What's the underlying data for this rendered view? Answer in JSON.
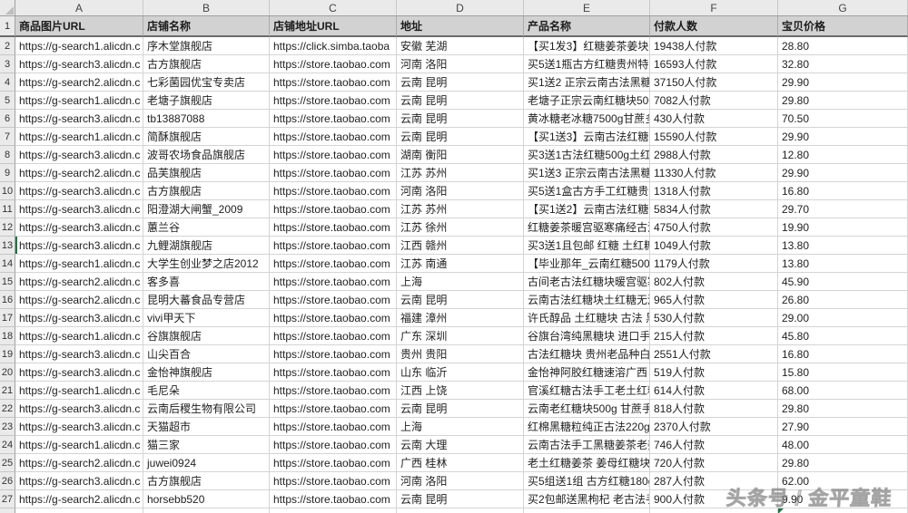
{
  "sheet": {
    "header_row_number": "1",
    "columns": [
      {
        "letter": "A",
        "header": "商品图片URL"
      },
      {
        "letter": "B",
        "header": "店铺名称"
      },
      {
        "letter": "C",
        "header": "店铺地址URL"
      },
      {
        "letter": "D",
        "header": "地址"
      },
      {
        "letter": "E",
        "header": "产品名称"
      },
      {
        "letter": "F",
        "header": "付款人数"
      },
      {
        "letter": "G",
        "header": "宝贝价格"
      }
    ],
    "rows": [
      {
        "n": "2",
        "cells": {
          "A": "https://g-search1.alicdn.c",
          "B": "序木堂旗舰店",
          "C": "https://click.simba.taoba",
          "D": "安徽 芜湖",
          "E": "【买1发3】红糖姜茶姜块红",
          "F": "19438人付款",
          "G": "28.80"
        }
      },
      {
        "n": "3",
        "cells": {
          "A": "https://g-search3.alicdn.c",
          "B": "古方旗舰店",
          "C": "https://store.taobao.com",
          "D": "河南 洛阳",
          "E": "买5送1瓶古方红糖贵州特产",
          "F": "16593人付款",
          "G": "32.80"
        }
      },
      {
        "n": "4",
        "cells": {
          "A": "https://g-search2.alicdn.c",
          "B": "七彩菌园优宝专卖店",
          "C": "https://store.taobao.com",
          "D": "云南 昆明",
          "E": "买1送2 正宗云南古法黑糖",
          "F": "37150人付款",
          "G": "29.90"
        }
      },
      {
        "n": "5",
        "cells": {
          "A": "https://g-search1.alicdn.c",
          "B": "老塘子旗舰店",
          "C": "https://store.taobao.com",
          "D": "云南 昆明",
          "E": "老塘子正宗云南红糖块500",
          "F": "7082人付款",
          "G": "29.80"
        }
      },
      {
        "n": "6",
        "cells": {
          "A": "https://g-search3.alicdn.c",
          "B": "tb13887088",
          "C": "https://store.taobao.com",
          "D": "云南 昆明",
          "E": "黄冰糖老冰糖7500g甘蔗多",
          "F": "430人付款",
          "G": "70.50"
        }
      },
      {
        "n": "7",
        "cells": {
          "A": "https://g-search1.alicdn.c",
          "B": "简酥旗舰店",
          "C": "https://store.taobao.com",
          "D": "云南 昆明",
          "E": "【买1送3】云南古法红糖块",
          "F": "15590人付款",
          "G": "29.90"
        }
      },
      {
        "n": "8",
        "cells": {
          "A": "https://g-search3.alicdn.c",
          "B": "波哥农场食品旗舰店",
          "C": "https://store.taobao.com",
          "D": "湖南 衡阳",
          "E": "买3送1古法红糖500g土红糖",
          "F": "2988人付款",
          "G": "12.80"
        }
      },
      {
        "n": "9",
        "cells": {
          "A": "https://g-search2.alicdn.c",
          "B": "品芙旗舰店",
          "C": "https://store.taobao.com",
          "D": "江苏 苏州",
          "E": "买1送3 正宗云南古法黑糖",
          "F": "11330人付款",
          "G": "29.90"
        }
      },
      {
        "n": "10",
        "cells": {
          "A": "https://g-search3.alicdn.c",
          "B": "古方旗舰店",
          "C": "https://store.taobao.com",
          "D": "河南 洛阳",
          "E": "买5送1盒古方手工红糖贵州",
          "F": "1318人付款",
          "G": "16.80"
        }
      },
      {
        "n": "11",
        "cells": {
          "A": "https://g-search3.alicdn.c",
          "B": "阳澄湖大闸蟹_2009",
          "C": "https://store.taobao.com",
          "D": "江苏 苏州",
          "E": "【买1送2】云南古法红糖姜",
          "F": "5834人付款",
          "G": "29.70"
        }
      },
      {
        "n": "12",
        "cells": {
          "A": "https://g-search3.alicdn.c",
          "B": "蕙兰谷",
          "C": "https://store.taobao.com",
          "D": "江苏 徐州",
          "E": "红糖姜茶暖宫驱寒痛经古法",
          "F": "4750人付款",
          "G": "19.90"
        }
      },
      {
        "n": "13",
        "cells": {
          "A": "https://g-search3.alicdn.c",
          "B": "九鲤湖旗舰店",
          "C": "https://store.taobao.com",
          "D": "江西 赣州",
          "E": "买3送1且包邮 红糖 土红糖",
          "F": "1049人付款",
          "G": "13.80"
        }
      },
      {
        "n": "14",
        "cells": {
          "A": "https://g-search1.alicdn.c",
          "B": "大学生创业梦之店2012",
          "C": "https://store.taobao.com",
          "D": "江苏 南通",
          "E": "【毕业那年_云南红糖500g",
          "F": "1179人付款",
          "G": "13.80"
        }
      },
      {
        "n": "15",
        "cells": {
          "A": "https://g-search2.alicdn.c",
          "B": "客多喜",
          "C": "https://store.taobao.com",
          "D": "上海",
          "E": "古间老古法红糖块暖宫驱寒",
          "F": "802人付款",
          "G": "45.90"
        }
      },
      {
        "n": "16",
        "cells": {
          "A": "https://g-search2.alicdn.c",
          "B": "昆明大蕃食品专营店",
          "C": "https://store.taobao.com",
          "D": "云南 昆明",
          "E": "云南古法红糖块土红糖无添",
          "F": "965人付款",
          "G": "26.80"
        }
      },
      {
        "n": "17",
        "cells": {
          "A": "https://g-search3.alicdn.c",
          "B": "vivi甲天下",
          "C": "https://store.taobao.com",
          "D": "福建 漳州",
          "E": "许氏醇品 土红糖块 古法 黑",
          "F": "530人付款",
          "G": "29.00"
        }
      },
      {
        "n": "18",
        "cells": {
          "A": "https://g-search1.alicdn.c",
          "B": "谷旗旗舰店",
          "C": "https://store.taobao.com",
          "D": "广东 深圳",
          "E": "谷旗台湾纯黑糖块 进口手",
          "F": "215人付款",
          "G": "45.80"
        }
      },
      {
        "n": "19",
        "cells": {
          "A": "https://g-search3.alicdn.c",
          "B": "山尖百合",
          "C": "https://store.taobao.com",
          "D": "贵州 贵阳",
          "E": "古法红糖块 贵州老品种白",
          "F": "2551人付款",
          "G": "16.80"
        }
      },
      {
        "n": "20",
        "cells": {
          "A": "https://g-search3.alicdn.c",
          "B": "金怡神旗舰店",
          "C": "https://store.taobao.com",
          "D": "山东 临沂",
          "E": "金怡神阿胶红糖速溶广西",
          "F": "519人付款",
          "G": "15.80"
        }
      },
      {
        "n": "21",
        "cells": {
          "A": "https://g-search1.alicdn.c",
          "B": "毛尼朵",
          "C": "https://store.taobao.com",
          "D": "江西 上饶",
          "E": "官溪红糖古法手工老土红糖",
          "F": "614人付款",
          "G": "68.00"
        }
      },
      {
        "n": "22",
        "cells": {
          "A": "https://g-search3.alicdn.c",
          "B": "云南后稷生物有限公司",
          "C": "https://store.taobao.com",
          "D": "云南 昆明",
          "E": "云南老红糖块500g 甘蔗手",
          "F": "818人付款",
          "G": "29.80"
        }
      },
      {
        "n": "23",
        "cells": {
          "A": "https://g-search3.alicdn.c",
          "B": "天猫超市",
          "C": "https://store.taobao.com",
          "D": "上海",
          "E": "红棉黑糖粒纯正古法220g/",
          "F": "2370人付款",
          "G": "27.90"
        }
      },
      {
        "n": "24",
        "cells": {
          "A": "https://g-search1.alicdn.c",
          "B": "猫三家",
          "C": "https://store.taobao.com",
          "D": "云南 大理",
          "E": "云南古法手工黑糖姜茶老姜",
          "F": "746人付款",
          "G": "48.00"
        }
      },
      {
        "n": "25",
        "cells": {
          "A": "https://g-search2.alicdn.c",
          "B": "juwei0924",
          "C": "https://store.taobao.com",
          "D": "广西 桂林",
          "E": "老土红糖姜茶 姜母红糖块",
          "F": "720人付款",
          "G": "29.80"
        }
      },
      {
        "n": "26",
        "cells": {
          "A": "https://g-search3.alicdn.c",
          "B": "古方旗舰店",
          "C": "https://store.taobao.com",
          "D": "河南 洛阳",
          "E": "买5组送1组 古方红糖180g",
          "F": "287人付款",
          "G": "62.00"
        }
      },
      {
        "n": "27",
        "cells": {
          "A": "https://g-search2.alicdn.c",
          "B": "horsebb520",
          "C": "https://store.taobao.com",
          "D": "云南 昆明",
          "E": "买2包邮送黑枸杞 老古法手",
          "F": "900人付款",
          "G": "9.90"
        }
      }
    ],
    "selection": {
      "active_cell": "A13"
    }
  },
  "watermark": "头条号 / 金平童鞋",
  "colors": {
    "error_indicator": "#217346",
    "active_cell_border": "#217346",
    "header_fill": "#D2D2D2",
    "gridline": "#d4d4d4"
  }
}
